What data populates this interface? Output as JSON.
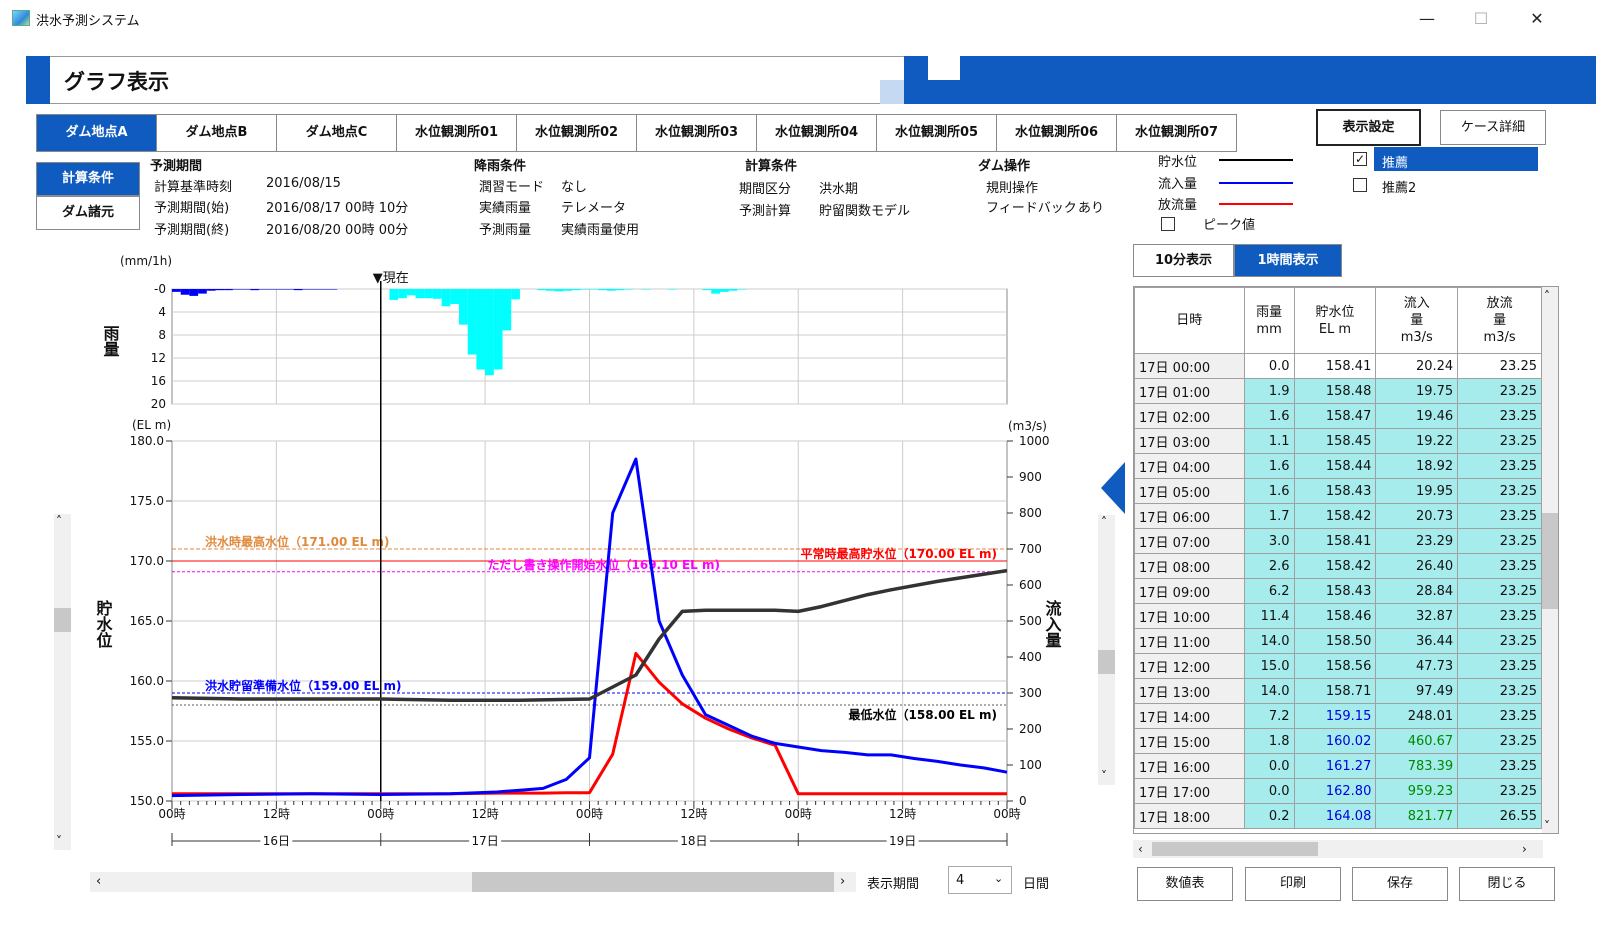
{
  "window": {
    "title": "洪水予測システム",
    "minimize": "—",
    "maximize": "☐",
    "close": "✕"
  },
  "header": {
    "title": "グラフ表示"
  },
  "tabs": [
    "ダム地点A",
    "ダム地点B",
    "ダム地点C",
    "水位観測所01",
    "水位観測所02",
    "水位観測所03",
    "水位観測所04",
    "水位観測所05",
    "水位観測所06",
    "水位観測所07"
  ],
  "top_buttons": {
    "display_settings": "表示設定",
    "case_details": "ケース詳細"
  },
  "side_buttons": {
    "calc_conditions": "計算条件",
    "dam_specs": "ダム諸元"
  },
  "forecast_period": {
    "heading": "予測期間",
    "rows": [
      {
        "label": "計算基準時刻",
        "value": "2016/08/15"
      },
      {
        "label": "予測期間(始)",
        "value": "2016/08/17 00時 10分"
      },
      {
        "label": "予測期間(終)",
        "value": "2016/08/20 00時 00分"
      }
    ]
  },
  "rain_conditions": {
    "heading": "降雨条件",
    "rows": [
      {
        "label": "潤習モード",
        "value": "なし"
      },
      {
        "label": "実績雨量",
        "value": "テレメータ"
      },
      {
        "label": "予測雨量",
        "value": "実績雨量使用"
      }
    ]
  },
  "calc_conditions": {
    "heading": "計算条件",
    "rows": [
      {
        "label": "期間区分",
        "value": "洪水期"
      },
      {
        "label": "予測計算",
        "value": "貯留関数モデル"
      }
    ]
  },
  "dam_operation": {
    "heading": "ダム操作",
    "rows": [
      {
        "label": "規則操作",
        "value": ""
      },
      {
        "label": "フィードバック",
        "value": "あり"
      }
    ]
  },
  "legend": {
    "items": [
      {
        "label": "貯水位",
        "color": "#000000"
      },
      {
        "label": "流入量",
        "color": "#0000ff"
      },
      {
        "label": "放流量",
        "color": "#ff0000"
      }
    ],
    "peak_label": "ピーク値",
    "peak_checked": false
  },
  "recommend": [
    {
      "label": "推薦",
      "checked": true,
      "selected": true
    },
    {
      "label": "推薦2",
      "checked": false,
      "selected": false
    }
  ],
  "time_toggle": {
    "ten_min": "10分表示",
    "one_hour": "1時間表示",
    "active": "one_hour"
  },
  "chart_data": [
    {
      "type": "bar",
      "title": "雨量",
      "ylabel": "雨量",
      "unit": "(mm/1h)",
      "now_label": "▼現在",
      "ylim": [
        0,
        20
      ],
      "yticks": [
        "-0",
        "4",
        "8",
        "12",
        "16",
        "20"
      ],
      "x_hours_from_16d00": [
        0,
        1,
        2,
        3,
        4,
        5,
        6,
        7,
        8,
        9,
        10,
        11,
        12,
        13,
        14,
        15,
        16,
        17,
        18,
        19,
        20,
        21,
        22,
        23,
        24,
        25,
        26,
        27,
        28,
        29,
        30,
        31,
        32,
        33,
        34,
        35,
        36,
        37,
        38,
        39,
        40,
        41,
        42,
        43,
        44,
        45,
        46,
        47,
        48,
        49,
        50,
        51,
        52,
        53,
        54,
        55,
        56,
        57,
        58,
        59,
        60,
        61,
        62,
        63,
        64,
        65,
        66,
        67,
        68,
        69,
        70,
        71,
        72
      ],
      "observed_rain": [
        0.5,
        1.0,
        1.2,
        0.8,
        0.3,
        0.2,
        0.2,
        0.1,
        0.1,
        0.2,
        0.1,
        0.1,
        0.1,
        0.1,
        0.2,
        0.1,
        0.1,
        0.1,
        0.1,
        0.0,
        0.0,
        0.0,
        0.0,
        0.0
      ],
      "forecast_rain": [
        0.0,
        1.9,
        1.6,
        1.1,
        1.6,
        1.6,
        1.7,
        3.0,
        2.6,
        6.2,
        11.4,
        14.0,
        15.0,
        14.0,
        7.2,
        1.8,
        0.0,
        0.0,
        0.2,
        0.3,
        0.4,
        0.3,
        0.2,
        0.1,
        0.1,
        0.2,
        0.3,
        0.2,
        0.1,
        0.0,
        0.1,
        0.0,
        0.0,
        0.1,
        0.0,
        0.0,
        0.0,
        0.2,
        0.8,
        0.5,
        0.3,
        0.1,
        0.0,
        0.0,
        0.0,
        0.0,
        0.0,
        0.0,
        0.0
      ],
      "colors": {
        "observed": "#0000ff",
        "forecast": "#00ffff"
      }
    },
    {
      "type": "line",
      "ylabel_left": "貯水位",
      "ylabel_right": "流入量",
      "unit_left": "(EL m)",
      "unit_right": "(m3/s)",
      "ylim_left": [
        150,
        180
      ],
      "ylim_right": [
        0,
        1000
      ],
      "yticks_left": [
        "150.0",
        "155.0",
        "160.0",
        "165.0",
        "170.0",
        "175.0",
        "180.0"
      ],
      "yticks_right": [
        "0",
        "100",
        "200",
        "300",
        "400",
        "500",
        "600",
        "700",
        "800",
        "900",
        "1000"
      ],
      "xticks": [
        "00時",
        "12時",
        "00時",
        "12時",
        "00時",
        "12時",
        "00時",
        "12時",
        "00時"
      ],
      "day_labels": [
        "16日",
        "17日",
        "18日",
        "19日"
      ],
      "reference_lines": [
        {
          "label": "洪水時最高水位（171.00 EL m)",
          "value": 171.0,
          "color": "#e08a3c"
        },
        {
          "label": "平常時最高貯水位（170.00 EL m)",
          "value": 170.0,
          "color": "#ff0000"
        },
        {
          "label": "ただし書き操作開始水位（169.10 EL m)",
          "value": 169.1,
          "color": "#ff00ff"
        },
        {
          "label": "洪水貯留準備水位（159.00 EL m)",
          "value": 159.0,
          "color": "#0000ff"
        },
        {
          "label": "最低水位（158.00 EL m)",
          "value": 158.0,
          "color": "#555555"
        }
      ],
      "series": [
        {
          "name": "貯水位",
          "color": "#333333",
          "x": [
            0,
            6,
            12,
            18,
            24,
            30,
            36,
            40,
            42,
            44,
            46,
            48,
            50,
            52,
            54,
            56,
            58,
            60,
            62,
            66,
            72
          ],
          "values": [
            158.6,
            158.5,
            158.5,
            158.5,
            158.4,
            158.4,
            158.5,
            160.5,
            163.5,
            165.8,
            165.9,
            165.9,
            165.9,
            165.9,
            165.8,
            166.2,
            166.7,
            167.2,
            167.6,
            168.3,
            169.2
          ]
        },
        {
          "name": "流入量",
          "color": "#0000ff",
          "x": [
            0,
            6,
            12,
            18,
            24,
            28,
            30,
            32,
            34,
            36,
            38,
            40,
            42,
            44,
            46,
            48,
            50,
            52,
            54,
            56,
            58,
            60,
            62,
            64,
            66,
            68,
            70,
            72
          ],
          "values": [
            15,
            18,
            20,
            18,
            20,
            25,
            30,
            35,
            60,
            120,
            800,
            950,
            500,
            350,
            240,
            210,
            180,
            160,
            150,
            140,
            135,
            128,
            128,
            118,
            110,
            100,
            92,
            80
          ]
        },
        {
          "name": "放流量",
          "color": "#ff0000",
          "x": [
            0,
            6,
            12,
            18,
            24,
            28,
            30,
            32,
            34,
            36,
            38,
            40,
            42,
            44,
            46,
            48,
            50,
            52,
            54,
            56,
            58,
            60,
            62,
            64,
            66,
            68,
            70,
            72
          ],
          "values": [
            20,
            20,
            20,
            20,
            20,
            22,
            22,
            22,
            23,
            23,
            130,
            410,
            330,
            270,
            230,
            200,
            175,
            155,
            20,
            20,
            20,
            20,
            20,
            20,
            20,
            20,
            20,
            20
          ]
        }
      ]
    }
  ],
  "table": {
    "headers": [
      "日時",
      "雨量\nmm",
      "貯水位\nEL m",
      "流入\n量\nm3/s",
      "放流\n量\nm3/s"
    ],
    "rows": [
      [
        "17日 00:00",
        "0.0",
        "158.41",
        "20.24",
        "23.25"
      ],
      [
        "17日 01:00",
        "1.9",
        "158.48",
        "19.75",
        "23.25"
      ],
      [
        "17日 02:00",
        "1.6",
        "158.47",
        "19.46",
        "23.25"
      ],
      [
        "17日 03:00",
        "1.1",
        "158.45",
        "19.22",
        "23.25"
      ],
      [
        "17日 04:00",
        "1.6",
        "158.44",
        "18.92",
        "23.25"
      ],
      [
        "17日 05:00",
        "1.6",
        "158.43",
        "19.95",
        "23.25"
      ],
      [
        "17日 06:00",
        "1.7",
        "158.42",
        "20.73",
        "23.25"
      ],
      [
        "17日 07:00",
        "3.0",
        "158.41",
        "23.29",
        "23.25"
      ],
      [
        "17日 08:00",
        "2.6",
        "158.42",
        "26.40",
        "23.25"
      ],
      [
        "17日 09:00",
        "6.2",
        "158.43",
        "28.84",
        "23.25"
      ],
      [
        "17日 10:00",
        "11.4",
        "158.46",
        "32.87",
        "23.25"
      ],
      [
        "17日 11:00",
        "14.0",
        "158.50",
        "36.44",
        "23.25"
      ],
      [
        "17日 12:00",
        "15.0",
        "158.56",
        "47.73",
        "23.25"
      ],
      [
        "17日 13:00",
        "14.0",
        "158.71",
        "97.49",
        "23.25"
      ],
      [
        "17日 14:00",
        "7.2",
        "159.15",
        "248.01",
        "23.25"
      ],
      [
        "17日 15:00",
        "1.8",
        "160.02",
        "460.67",
        "23.25"
      ],
      [
        "17日 16:00",
        "0.0",
        "161.27",
        "783.39",
        "23.25"
      ],
      [
        "17日 17:00",
        "0.0",
        "162.80",
        "959.23",
        "23.25"
      ],
      [
        "17日 18:00",
        "0.2",
        "164.08",
        "821.77",
        "26.55"
      ]
    ],
    "highlight_blue_from_row": 14,
    "highlight_green_from_row": 15
  },
  "bottom": {
    "period_label": "表示期間",
    "period_value": "4",
    "period_unit": "日間",
    "buttons": [
      "数値表",
      "印刷",
      "保存",
      "閉じる"
    ]
  }
}
